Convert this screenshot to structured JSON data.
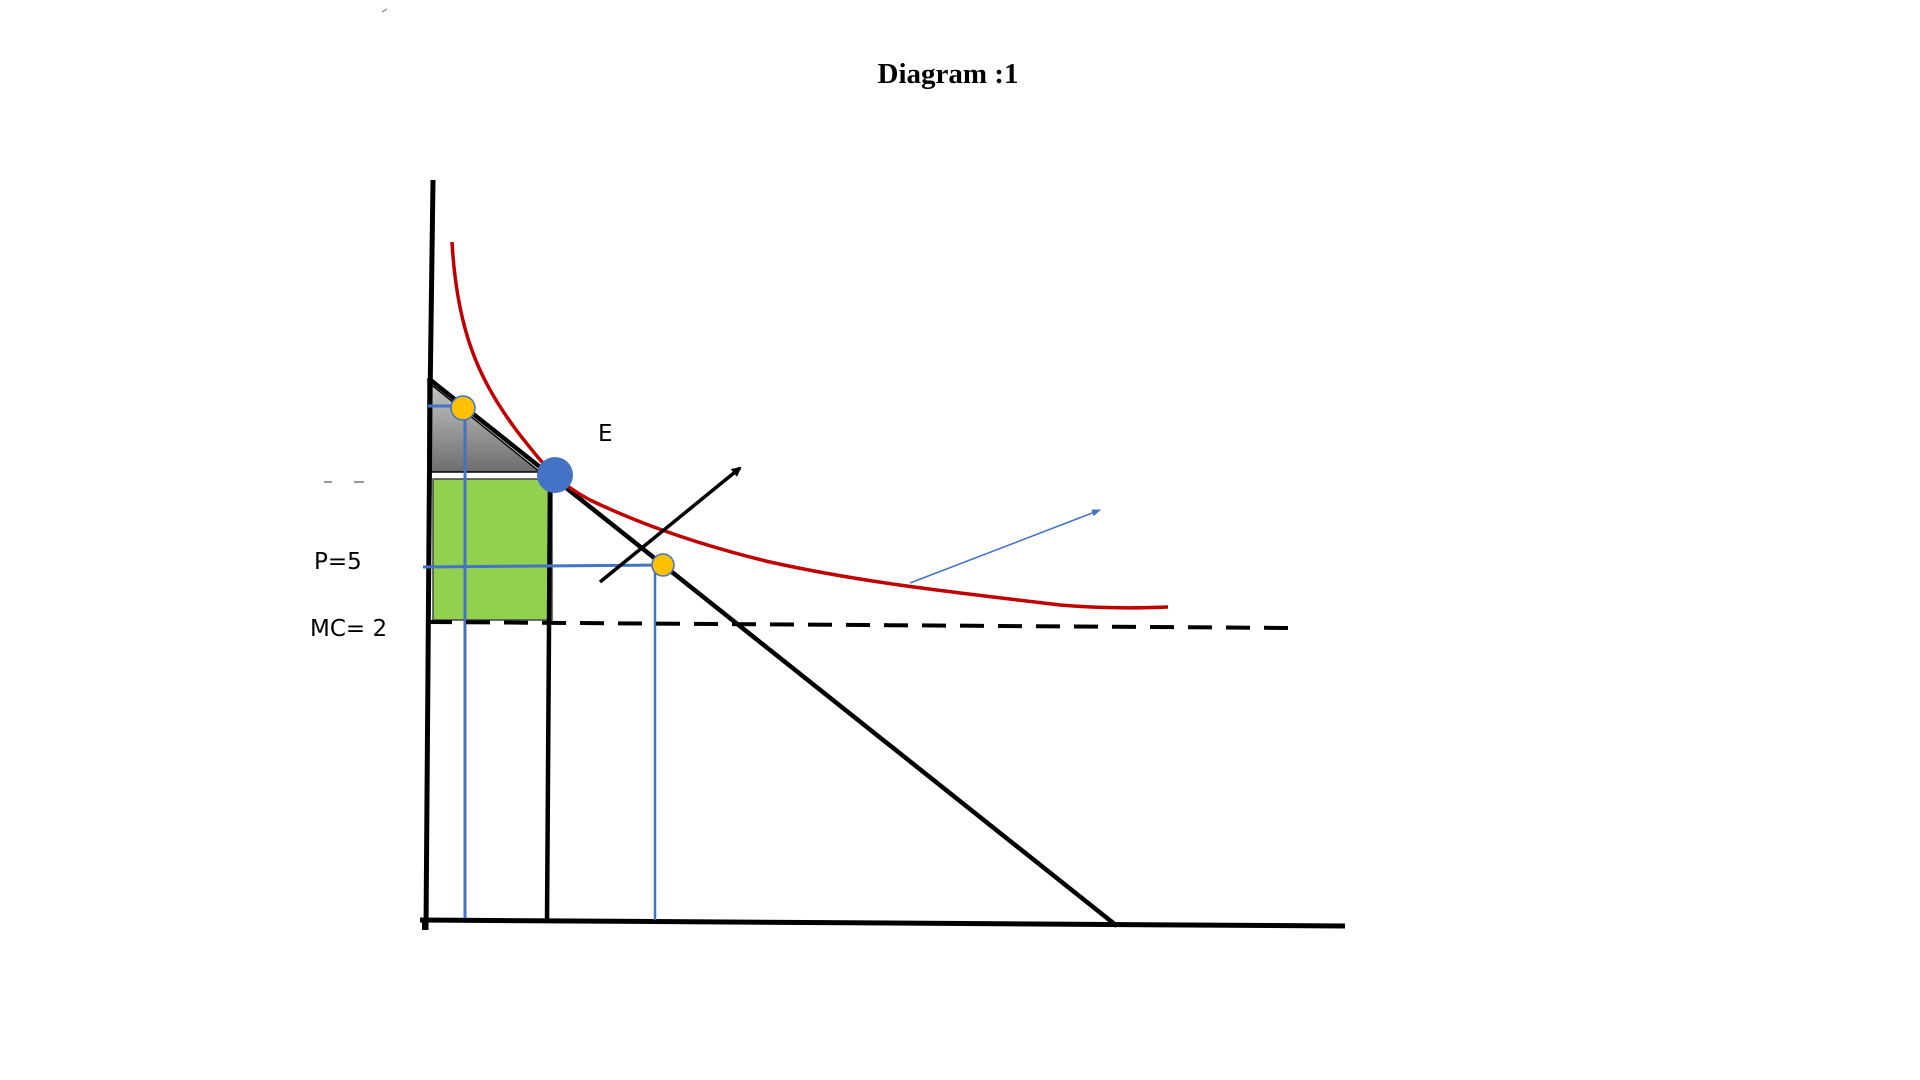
{
  "title": "Diagram :1",
  "labels": {
    "price": "P=5",
    "marginal_cost": "MC= 2",
    "equilibrium": "E"
  },
  "colors": {
    "indifference_curve": "#c00000",
    "guide_lines": "#4472c4",
    "green_area": "#92d050",
    "grey_area": "#7f7f7f",
    "equilibrium_point": "#4472c4",
    "points": "#ffc000",
    "axes": "#000000"
  }
}
